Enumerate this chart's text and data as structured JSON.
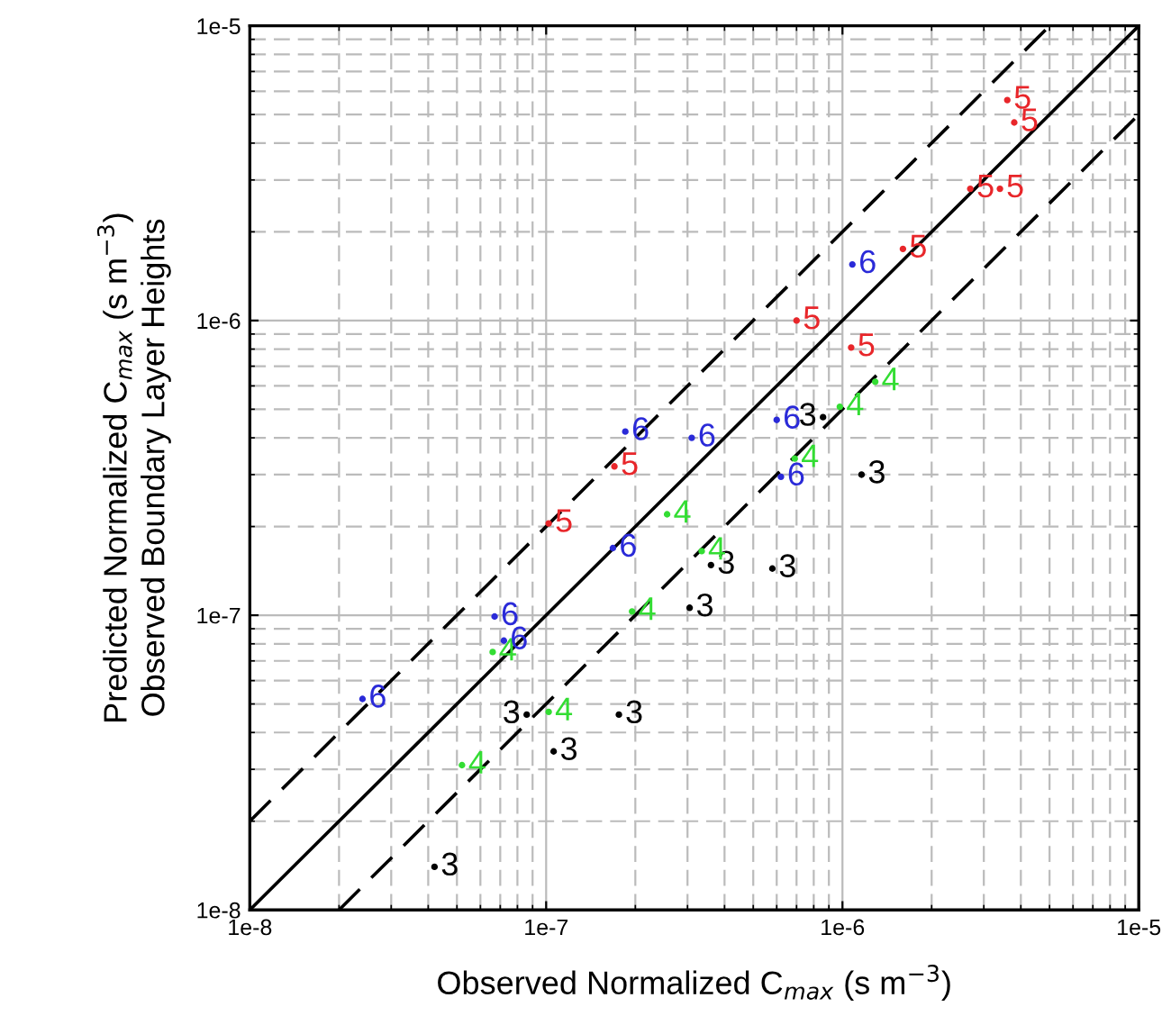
{
  "chart_data": {
    "type": "scatter",
    "xlabel": "Observed Normalized C$_{max}$ (s m$^{−3}$)",
    "ylabel": "Predicted Normalized C$_{max}$ (s m$^{−3}$)\nObserved Boundary Layer Heights",
    "log": "xy",
    "grid": true,
    "xlim": [
      1e-08,
      1e-05
    ],
    "ylim": [
      1e-08,
      1e-05
    ],
    "xticks": [
      {
        "value": 1e-08,
        "label": "1e-8"
      },
      {
        "value": 1e-07,
        "label": "1e-7"
      },
      {
        "value": 1e-06,
        "label": "1e-6"
      },
      {
        "value": 1e-05,
        "label": "1e-5"
      }
    ],
    "yticks": [
      {
        "value": 1e-08,
        "label": "1e-8"
      },
      {
        "value": 1e-07,
        "label": "1e-7"
      },
      {
        "value": 1e-06,
        "label": "1e-6"
      },
      {
        "value": 1e-05,
        "label": "1e-5"
      }
    ],
    "series": [
      {
        "name": "3",
        "color": "#000000",
        "x": [
          8.6e-07,
          1.16e-06,
          3.6e-07,
          5.8e-07,
          3.05e-07,
          8.6e-08,
          1.76e-07,
          1.06e-07,
          4.2e-08
        ],
        "values": [
          4.7e-07,
          3e-07,
          1.48e-07,
          1.44e-07,
          1.06e-07,
          4.6e-08,
          4.6e-08,
          3.45e-08,
          1.4e-08
        ]
      },
      {
        "name": "4",
        "color": "#33dd33",
        "x": [
          1.29e-06,
          9.8e-07,
          6.9e-07,
          2.56e-07,
          3.35e-07,
          1.95e-07,
          6.6e-08,
          1.02e-07,
          5.2e-08
        ],
        "values": [
          6.2e-07,
          5.1e-07,
          3.4e-07,
          2.2e-07,
          1.65e-07,
          1.03e-07,
          7.5e-08,
          4.7e-08,
          3.1e-08
        ]
      },
      {
        "name": "5",
        "color": "#e8262a",
        "x": [
          3.6e-06,
          3.8e-06,
          2.7e-06,
          3.4e-06,
          1.6e-06,
          7e-07,
          1.07e-06,
          1.7e-07,
          1.02e-07
        ],
        "values": [
          5.6e-06,
          4.7e-06,
          2.8e-06,
          2.8e-06,
          1.75e-06,
          1e-06,
          8.1e-07,
          3.2e-07,
          2.05e-07
        ]
      },
      {
        "name": "6",
        "color": "#2a2ad8",
        "x": [
          1.08e-06,
          6e-07,
          1.85e-07,
          3.1e-07,
          6.2e-07,
          1.68e-07,
          6.7e-08,
          7.2e-08,
          2.4e-08
        ],
        "values": [
          1.55e-06,
          4.6e-07,
          4.2e-07,
          4e-07,
          2.95e-07,
          1.69e-07,
          9.9e-08,
          8.2e-08,
          5.2e-08
        ]
      },
      {
        "type": "line",
        "color": "#000000",
        "line_style": "solid",
        "x": [
          1e-08,
          1e-05
        ],
        "values": [
          1e-08,
          1e-05
        ]
      },
      {
        "type": "line",
        "color": "#000000",
        "line_style": "dashed",
        "x": [
          1e-08,
          5e-06
        ],
        "values": [
          2e-08,
          1e-05
        ]
      },
      {
        "type": "line",
        "color": "#000000",
        "line_style": "dashed",
        "x": [
          2e-08,
          1e-05
        ],
        "values": [
          1e-08,
          5e-06
        ]
      }
    ]
  }
}
